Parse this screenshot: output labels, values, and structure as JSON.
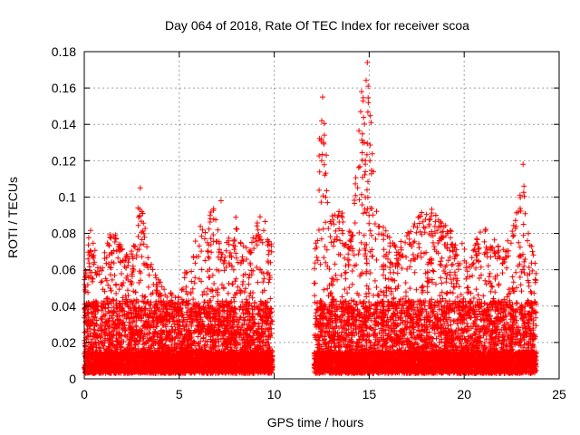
{
  "chart_data": {
    "type": "scatter",
    "title": "Day 064 of 2018, Rate Of TEC Index for receiver scoa",
    "xlabel": "GPS time / hours",
    "ylabel": "ROTI / TECUs",
    "xlim": [
      0,
      25
    ],
    "ylim": [
      0,
      0.18
    ],
    "x_ticks": [
      0,
      5,
      10,
      15,
      20,
      25
    ],
    "x_tick_labels": [
      "0",
      "5",
      "10",
      "15",
      "20",
      "25"
    ],
    "y_ticks": [
      0,
      0.02,
      0.04,
      0.06,
      0.08,
      0.1,
      0.12,
      0.14,
      0.16,
      0.18
    ],
    "y_tick_labels": [
      "0",
      "0.02",
      "0.04",
      "0.06",
      "0.08",
      "0.1",
      "0.12",
      "0.14",
      "0.16",
      "0.18"
    ],
    "grid": true,
    "marker": "+",
    "marker_color": "#ff0000",
    "density_profile": {
      "note": "Dense cloud of ROTI samples; approximate upper envelope (hours, ROTI) and data gap",
      "segments": [
        [
          0.0,
          9.9
        ],
        [
          12.1,
          23.8
        ]
      ],
      "baseline_min": 0.003,
      "envelope": [
        [
          0.0,
          0.055
        ],
        [
          0.3,
          0.088
        ],
        [
          0.8,
          0.06
        ],
        [
          1.5,
          0.085
        ],
        [
          2.1,
          0.07
        ],
        [
          2.7,
          0.075
        ],
        [
          2.9,
          0.105
        ],
        [
          3.5,
          0.065
        ],
        [
          4.2,
          0.05
        ],
        [
          5.0,
          0.045
        ],
        [
          5.6,
          0.08
        ],
        [
          6.2,
          0.085
        ],
        [
          6.8,
          0.095
        ],
        [
          7.3,
          0.07
        ],
        [
          8.0,
          0.09
        ],
        [
          8.6,
          0.07
        ],
        [
          9.2,
          0.09
        ],
        [
          9.8,
          0.085
        ],
        [
          12.1,
          0.06
        ],
        [
          12.4,
          0.14
        ],
        [
          12.6,
          0.155
        ],
        [
          12.9,
          0.09
        ],
        [
          13.5,
          0.095
        ],
        [
          14.0,
          0.08
        ],
        [
          14.4,
          0.13
        ],
        [
          14.6,
          0.158
        ],
        [
          14.9,
          0.174
        ],
        [
          15.1,
          0.14
        ],
        [
          15.5,
          0.09
        ],
        [
          16.2,
          0.075
        ],
        [
          17.0,
          0.08
        ],
        [
          17.5,
          0.09
        ],
        [
          18.3,
          0.095
        ],
        [
          19.0,
          0.085
        ],
        [
          19.6,
          0.08
        ],
        [
          20.3,
          0.07
        ],
        [
          20.8,
          0.085
        ],
        [
          21.4,
          0.08
        ],
        [
          22.0,
          0.07
        ],
        [
          22.6,
          0.085
        ],
        [
          23.1,
          0.118
        ],
        [
          23.4,
          0.085
        ],
        [
          23.8,
          0.06
        ]
      ],
      "highlights": [
        [
          12.55,
          0.155
        ],
        [
          12.5,
          0.142
        ],
        [
          12.6,
          0.13
        ],
        [
          12.5,
          0.12
        ],
        [
          14.6,
          0.158
        ],
        [
          14.55,
          0.147
        ],
        [
          14.9,
          0.174
        ],
        [
          14.95,
          0.152
        ],
        [
          15.1,
          0.141
        ],
        [
          14.75,
          0.13
        ],
        [
          14.8,
          0.12
        ],
        [
          23.1,
          0.118
        ],
        [
          23.15,
          0.106
        ],
        [
          2.95,
          0.105
        ],
        [
          7.2,
          0.098
        ]
      ]
    }
  }
}
